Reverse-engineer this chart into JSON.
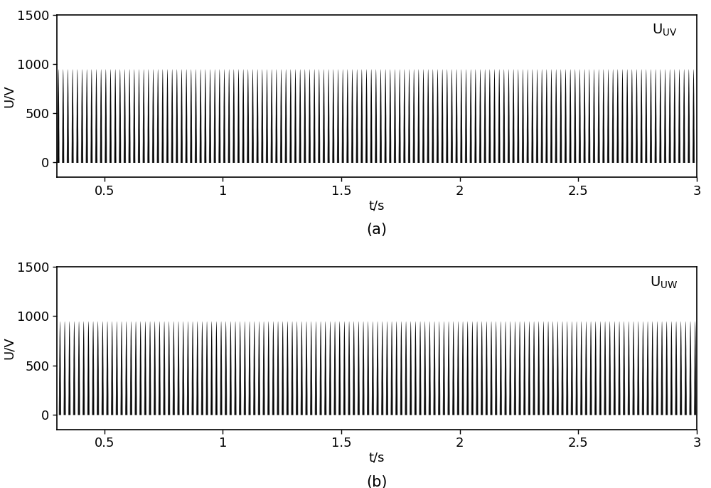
{
  "title_a": "U$_{\\mathrm{UV}}$",
  "title_b": "U$_{\\mathrm{UW}}$",
  "xlabel": "t/s",
  "ylabel": "U/V",
  "xlim": [
    0.3,
    3.0
  ],
  "ylim_plot": [
    -150,
    1500
  ],
  "ylim_view": [
    -150,
    1500
  ],
  "yticks": [
    0,
    500,
    1000,
    1500
  ],
  "xticks": [
    0.5,
    1.0,
    1.5,
    2.0,
    2.5,
    3.0
  ],
  "xtick_labels": [
    "0.5",
    "1",
    "1.5",
    "2",
    "2.5",
    "3"
  ],
  "label_a": "(a)",
  "label_b": "(b)",
  "line_color": "#000000",
  "background_color": "#ffffff",
  "t_start": 0.3,
  "t_end": 3.002,
  "fund_freq": 50,
  "pwm_freq": 1050,
  "v_peak": 950,
  "phase_a": 0.0,
  "phase_b": -2.0943951,
  "dt": 5e-05
}
